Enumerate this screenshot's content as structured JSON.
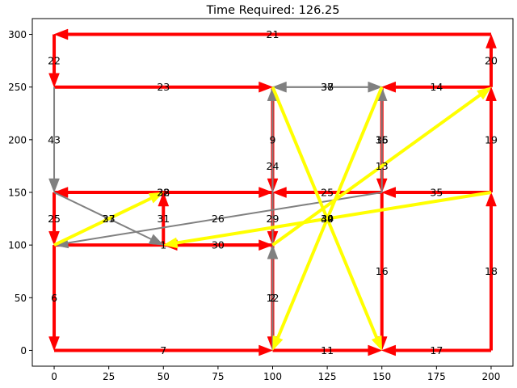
{
  "chart_data": {
    "type": "network-route",
    "title": "Time Required: 126.25",
    "xlim": [
      -10,
      210
    ],
    "ylim": [
      -15,
      315
    ],
    "x_ticks": [
      0,
      25,
      50,
      75,
      100,
      125,
      150,
      175,
      200
    ],
    "y_ticks": [
      0,
      50,
      100,
      150,
      200,
      250,
      300
    ],
    "grid": false,
    "legend": "none",
    "colors": {
      "red": "#ff0000",
      "gray": "#808080",
      "yellow": "#ffff00"
    },
    "edges": [
      {
        "from": [
          0,
          100
        ],
        "to": [
          100,
          100
        ],
        "color": "red",
        "label": "1"
      },
      {
        "from": [
          100,
          100
        ],
        "to": [
          100,
          0
        ],
        "color": "red",
        "label": "2"
      },
      {
        "from": [
          0,
          150
        ],
        "to": [
          0,
          100
        ],
        "color": "red",
        "label": "25"
      },
      {
        "from": [
          0,
          100
        ],
        "to": [
          0,
          0
        ],
        "color": "red",
        "label": "6"
      },
      {
        "from": [
          0,
          0
        ],
        "to": [
          100,
          0
        ],
        "color": "red",
        "label": "7"
      },
      {
        "from": [
          100,
          0
        ],
        "to": [
          150,
          0
        ],
        "color": "red",
        "label": "11"
      },
      {
        "from": [
          200,
          0
        ],
        "to": [
          150,
          0
        ],
        "color": "red",
        "label": "17"
      },
      {
        "from": [
          150,
          150
        ],
        "to": [
          150,
          0
        ],
        "color": "red",
        "label": "16"
      },
      {
        "from": [
          200,
          0
        ],
        "to": [
          200,
          150
        ],
        "color": "red",
        "label": "18"
      },
      {
        "from": [
          200,
          150
        ],
        "to": [
          200,
          250
        ],
        "color": "red",
        "label": "19"
      },
      {
        "from": [
          200,
          250
        ],
        "to": [
          200,
          300
        ],
        "color": "red",
        "label": "20"
      },
      {
        "from": [
          200,
          300
        ],
        "to": [
          0,
          300
        ],
        "color": "red",
        "label": "21"
      },
      {
        "from": [
          0,
          300
        ],
        "to": [
          0,
          250
        ],
        "color": "red",
        "label": "22"
      },
      {
        "from": [
          0,
          250
        ],
        "to": [
          100,
          250
        ],
        "color": "red",
        "label": "23"
      },
      {
        "from": [
          200,
          250
        ],
        "to": [
          150,
          250
        ],
        "color": "red",
        "label": "14"
      },
      {
        "from": [
          150,
          250
        ],
        "to": [
          150,
          150
        ],
        "color": "red",
        "label": "15"
      },
      {
        "from": [
          200,
          150
        ],
        "to": [
          150,
          150
        ],
        "color": "red",
        "label": "35"
      },
      {
        "from": [
          150,
          150
        ],
        "to": [
          100,
          150
        ],
        "color": "red",
        "label": "25"
      },
      {
        "from": [
          100,
          250
        ],
        "to": [
          100,
          150
        ],
        "color": "red",
        "label": "9"
      },
      {
        "from": [
          100,
          150
        ],
        "to": [
          100,
          100
        ],
        "color": "red",
        "label": "29"
      },
      {
        "from": [
          0,
          150
        ],
        "to": [
          100,
          150
        ],
        "color": "red",
        "label": "28"
      },
      {
        "from": [
          100,
          150
        ],
        "to": [
          0,
          150
        ],
        "color": "red",
        "label": "32"
      },
      {
        "from": [
          100,
          100
        ],
        "to": [
          50,
          100
        ],
        "color": "red",
        "label": "30"
      },
      {
        "from": [
          50,
          100
        ],
        "to": [
          50,
          150
        ],
        "color": "red",
        "label": "31"
      },
      {
        "from": [
          100,
          250
        ],
        "to": [
          150,
          250
        ],
        "color": "gray",
        "label": "37"
      },
      {
        "from": [
          150,
          250
        ],
        "to": [
          100,
          250
        ],
        "color": "gray",
        "label": "38"
      },
      {
        "from": [
          150,
          150
        ],
        "to": [
          150,
          250
        ],
        "color": "gray",
        "label": "36"
      },
      {
        "from": [
          0,
          250
        ],
        "to": [
          0,
          150
        ],
        "color": "gray",
        "label": "43"
      },
      {
        "from": [
          0,
          150
        ],
        "to": [
          50,
          100
        ],
        "color": "gray",
        "label": "33"
      },
      {
        "from": [
          150,
          150
        ],
        "to": [
          0,
          100
        ],
        "color": "gray",
        "label": "26"
      },
      {
        "from": [
          100,
          0
        ],
        "to": [
          100,
          100
        ],
        "color": "gray",
        "label": "12"
      },
      {
        "from": [
          100,
          100
        ],
        "to": [
          100,
          250
        ],
        "color": "gray",
        "label": "24"
      },
      {
        "from": [
          0,
          100
        ],
        "to": [
          50,
          150
        ],
        "color": "yellow",
        "label": "27"
      },
      {
        "from": [
          100,
          250
        ],
        "to": [
          150,
          0
        ],
        "color": "yellow",
        "label": "39"
      },
      {
        "from": [
          150,
          250
        ],
        "to": [
          100,
          0
        ],
        "color": "yellow",
        "label": "40"
      },
      {
        "from": [
          100,
          100
        ],
        "to": [
          200,
          250
        ],
        "color": "yellow",
        "label": "13"
      },
      {
        "from": [
          200,
          150
        ],
        "to": [
          50,
          100
        ],
        "color": "yellow",
        "label": "34"
      }
    ]
  }
}
